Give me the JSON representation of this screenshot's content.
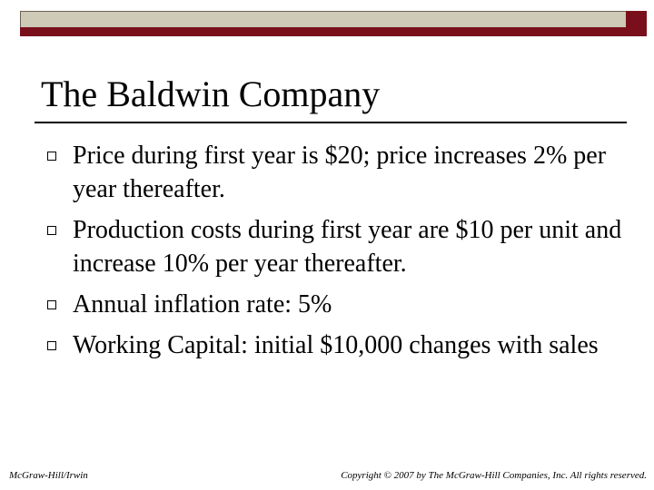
{
  "header": {
    "title": "The Baldwin Company"
  },
  "bullets": [
    "Price during first year is $20; price increases 2% per year thereafter.",
    "Production costs during first year are $10 per unit and increase 10% per year thereafter.",
    "Annual inflation rate: 5%",
    "Working Capital: initial $10,000 changes with sales"
  ],
  "footer": {
    "left": "McGraw-Hill/Irwin",
    "right": "Copyright © 2007 by The McGraw-Hill Companies, Inc. All rights reserved."
  }
}
